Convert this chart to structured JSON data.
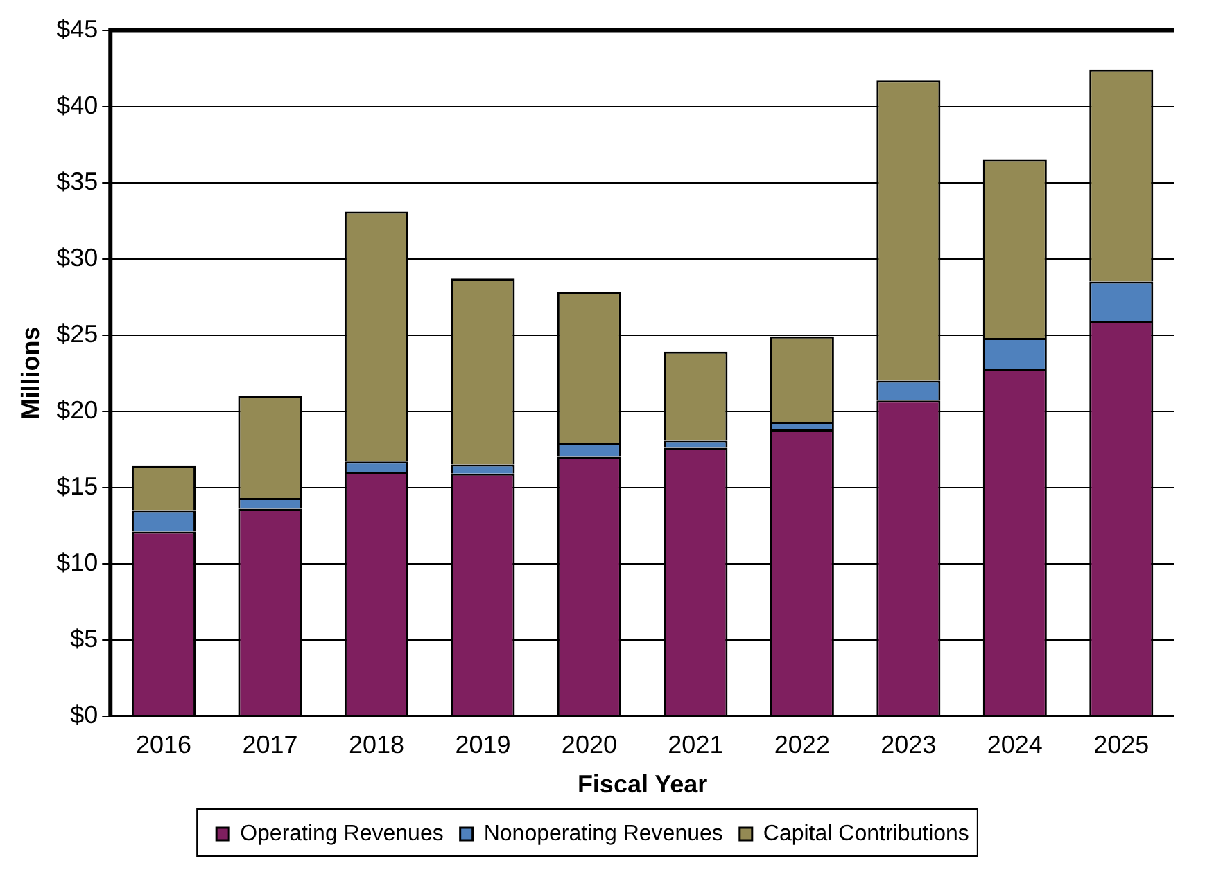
{
  "chart_data": {
    "type": "bar",
    "stacked": true,
    "xlabel": "Fiscal Year",
    "ylabel": "Millions",
    "categories": [
      "2016",
      "2017",
      "2018",
      "2019",
      "2020",
      "2021",
      "2022",
      "2023",
      "2024",
      "2025"
    ],
    "series": [
      {
        "name": "Operating Revenues",
        "color": "#7f1f5f",
        "values": [
          12.1,
          13.6,
          16.0,
          15.9,
          17.0,
          17.6,
          18.8,
          20.7,
          22.8,
          25.9
        ]
      },
      {
        "name": "Nonoperating Revenues",
        "color": "#4f81bd",
        "values": [
          1.4,
          0.7,
          0.7,
          0.6,
          0.9,
          0.5,
          0.5,
          1.3,
          2.0,
          2.6
        ]
      },
      {
        "name": "Capital Contributions",
        "color": "#948a54",
        "values": [
          2.9,
          6.7,
          16.4,
          12.2,
          9.9,
          5.8,
          5.6,
          19.7,
          11.7,
          13.9
        ]
      }
    ],
    "ylim": [
      0,
      45
    ],
    "yticks": [
      {
        "value": 0,
        "label": "$0"
      },
      {
        "value": 5,
        "label": "$5"
      },
      {
        "value": 10,
        "label": "$10"
      },
      {
        "value": 15,
        "label": "$15"
      },
      {
        "value": 20,
        "label": "$20"
      },
      {
        "value": 25,
        "label": "$25"
      },
      {
        "value": 30,
        "label": "$30"
      },
      {
        "value": 35,
        "label": "$35"
      },
      {
        "value": 40,
        "label": "$40"
      },
      {
        "value": 45,
        "label": "$45"
      }
    ],
    "grid": "y",
    "legend": "bottom"
  }
}
